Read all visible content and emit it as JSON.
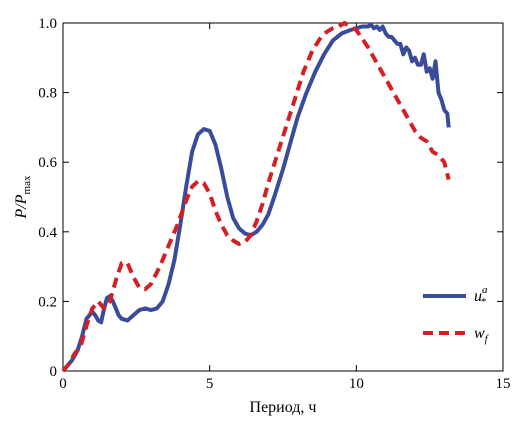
{
  "chart_data": {
    "type": "line",
    "title": "",
    "xlabel": "Период, ч",
    "ylabel": "P/P",
    "ylabel_sub": "max",
    "xlim": [
      0,
      15
    ],
    "ylim": [
      0,
      1
    ],
    "xticks": [
      0,
      5,
      10,
      15
    ],
    "yticks": [
      0,
      0.2,
      0.4,
      0.6,
      0.8,
      1.0
    ],
    "xtick_labels": [
      "0",
      "5",
      "10",
      "15"
    ],
    "ytick_labels": [
      "0",
      "0.2",
      "0.4",
      "0.6",
      "0.8",
      "1.0"
    ],
    "grid": false,
    "legend_position": "bottom-right",
    "series": [
      {
        "name": "u",
        "name_sup": "a",
        "name_sub": "*",
        "color": "#3a4b9c",
        "style": "solid",
        "x": [
          0,
          0.3,
          0.5,
          0.65,
          0.8,
          0.9,
          1.0,
          1.1,
          1.2,
          1.3,
          1.4,
          1.5,
          1.6,
          1.7,
          1.8,
          1.9,
          2.0,
          2.2,
          2.4,
          2.6,
          2.8,
          3.0,
          3.2,
          3.4,
          3.6,
          3.8,
          4.0,
          4.2,
          4.4,
          4.6,
          4.8,
          5.0,
          5.2,
          5.4,
          5.6,
          5.8,
          6.0,
          6.2,
          6.4,
          6.6,
          6.8,
          7.0,
          7.2,
          7.5,
          7.8,
          8.0,
          8.3,
          8.6,
          8.9,
          9.2,
          9.5,
          9.8,
          10.0,
          10.2,
          10.4,
          10.5,
          10.6,
          10.7,
          10.8,
          10.9,
          11.0,
          11.1,
          11.2,
          11.3,
          11.4,
          11.5,
          11.6,
          11.7,
          11.8,
          11.9,
          12.0,
          12.1,
          12.2,
          12.3,
          12.4,
          12.5,
          12.6,
          12.7,
          12.8,
          12.9,
          13.0,
          13.1,
          13.15
        ],
        "y": [
          0,
          0.03,
          0.06,
          0.1,
          0.15,
          0.16,
          0.17,
          0.16,
          0.145,
          0.14,
          0.18,
          0.21,
          0.215,
          0.2,
          0.18,
          0.16,
          0.15,
          0.145,
          0.16,
          0.175,
          0.18,
          0.175,
          0.18,
          0.2,
          0.25,
          0.32,
          0.42,
          0.53,
          0.63,
          0.68,
          0.695,
          0.69,
          0.65,
          0.58,
          0.5,
          0.44,
          0.41,
          0.395,
          0.39,
          0.4,
          0.42,
          0.45,
          0.5,
          0.58,
          0.67,
          0.73,
          0.8,
          0.86,
          0.91,
          0.95,
          0.97,
          0.98,
          0.985,
          0.99,
          0.99,
          0.995,
          0.985,
          0.99,
          0.98,
          0.99,
          0.97,
          0.96,
          0.96,
          0.95,
          0.94,
          0.94,
          0.91,
          0.93,
          0.92,
          0.89,
          0.9,
          0.88,
          0.88,
          0.91,
          0.86,
          0.87,
          0.84,
          0.89,
          0.8,
          0.78,
          0.75,
          0.74,
          0.7
        ]
      },
      {
        "name": "w",
        "name_sub": "f",
        "color": "#d42024",
        "style": "dashed",
        "x": [
          0,
          0.2,
          0.4,
          0.6,
          0.8,
          1.0,
          1.2,
          1.4,
          1.6,
          1.8,
          2.0,
          2.2,
          2.4,
          2.6,
          2.8,
          3.0,
          3.3,
          3.6,
          3.9,
          4.2,
          4.4,
          4.6,
          4.8,
          5.0,
          5.2,
          5.4,
          5.6,
          5.8,
          6.0,
          6.2,
          6.4,
          6.6,
          6.8,
          7.0,
          7.3,
          7.6,
          7.9,
          8.2,
          8.5,
          8.8,
          9.0,
          9.2,
          9.4,
          9.6,
          9.8,
          10.0,
          10.2,
          10.4,
          10.6,
          10.8,
          11.0,
          11.2,
          11.4,
          11.6,
          11.8,
          12.0,
          12.2,
          12.4,
          12.6,
          12.8,
          13.0,
          13.15
        ],
        "y": [
          0,
          0.02,
          0.05,
          0.07,
          0.13,
          0.18,
          0.2,
          0.18,
          0.2,
          0.26,
          0.31,
          0.31,
          0.27,
          0.24,
          0.235,
          0.25,
          0.3,
          0.36,
          0.42,
          0.49,
          0.53,
          0.545,
          0.54,
          0.51,
          0.46,
          0.42,
          0.39,
          0.375,
          0.365,
          0.37,
          0.39,
          0.43,
          0.48,
          0.54,
          0.62,
          0.7,
          0.78,
          0.86,
          0.92,
          0.96,
          0.975,
          0.985,
          0.99,
          1.0,
          0.99,
          0.98,
          0.955,
          0.93,
          0.9,
          0.87,
          0.84,
          0.81,
          0.78,
          0.75,
          0.72,
          0.69,
          0.67,
          0.66,
          0.63,
          0.62,
          0.6,
          0.55
        ]
      }
    ]
  }
}
